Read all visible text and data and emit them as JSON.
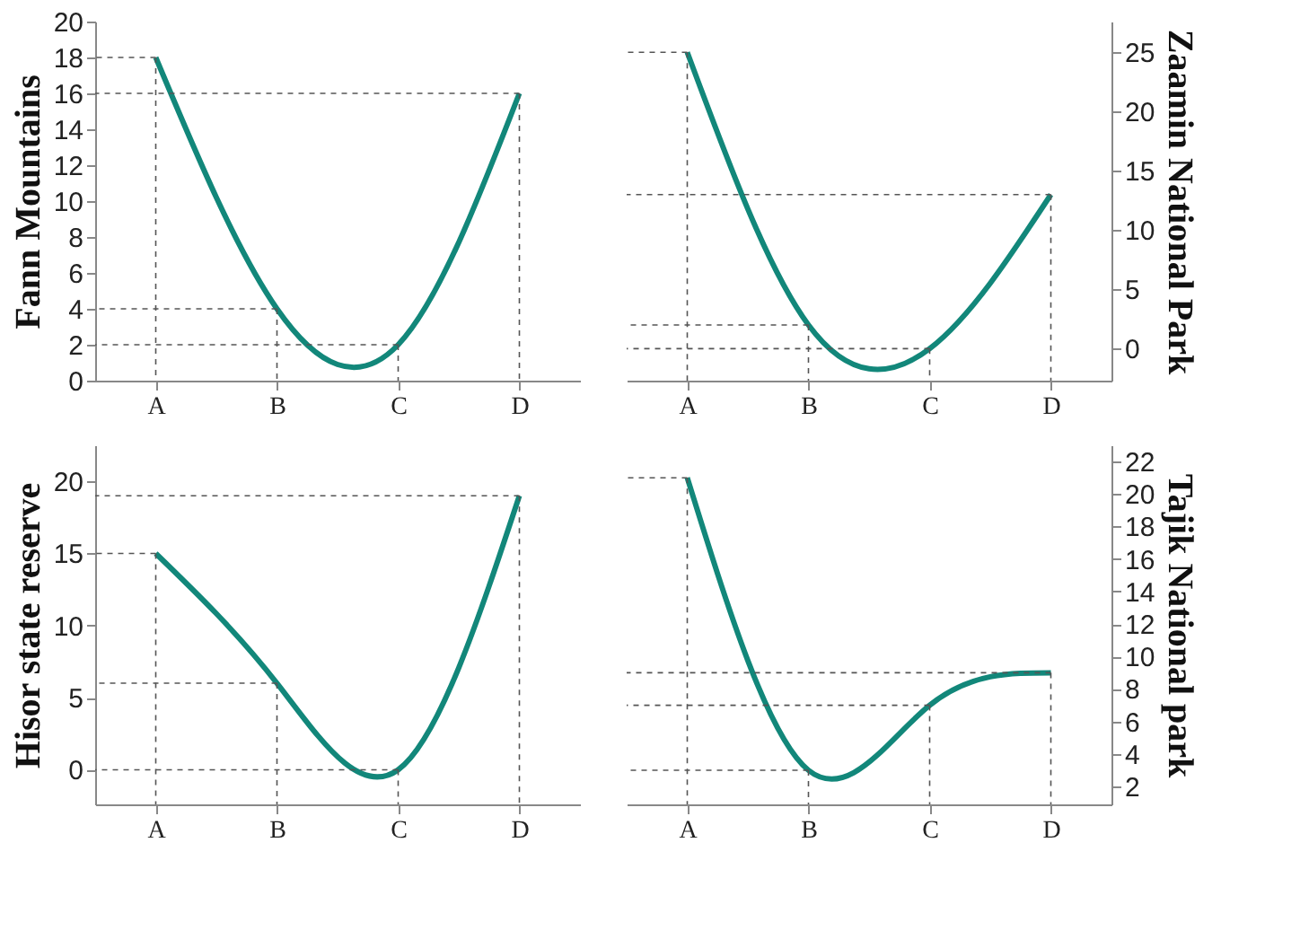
{
  "chart_data": [
    {
      "type": "line",
      "categories": [
        "A",
        "B",
        "C",
        "D"
      ],
      "ylabel": "Fann Mountains",
      "ylim": [
        0,
        20
      ],
      "yticks": [
        0,
        2,
        4,
        6,
        8,
        10,
        12,
        14,
        16,
        18,
        20
      ],
      "grid": false,
      "marker": "none",
      "series": [
        {
          "color": "#12877a",
          "values": [
            18,
            4,
            2,
            16
          ]
        }
      ],
      "ref_lines": [
        {
          "axis": "y",
          "value": 18,
          "color": "#555555",
          "line_style": "dashed"
        },
        {
          "axis": "y",
          "value": 4,
          "color": "#555555",
          "line_style": "dashed"
        },
        {
          "axis": "y",
          "value": 2,
          "color": "#555555",
          "line_style": "dashed"
        },
        {
          "axis": "y",
          "value": 16,
          "color": "#555555",
          "line_style": "dashed"
        },
        {
          "axis": "x",
          "value": "A",
          "color": "#555555",
          "line_style": "dashed"
        },
        {
          "axis": "x",
          "value": "B",
          "color": "#555555",
          "line_style": "dashed"
        },
        {
          "axis": "x",
          "value": "C",
          "color": "#555555",
          "line_style": "dashed"
        },
        {
          "axis": "x",
          "value": "D",
          "color": "#555555",
          "line_style": "dashed"
        }
      ]
    },
    {
      "type": "line",
      "categories": [
        "A",
        "B",
        "C",
        "D"
      ],
      "y2label": "Zaamin National Park",
      "y2lim": [
        -2.7,
        27.6
      ],
      "y2ticks": [
        0,
        5,
        10,
        15,
        20,
        25
      ],
      "grid": false,
      "marker": "none",
      "series": [
        {
          "color": "#12877a",
          "values": [
            25,
            2,
            0,
            13
          ],
          "axis": "y2"
        }
      ],
      "ref_lines": [
        {
          "axis": "y2",
          "value": 25,
          "color": "#555555",
          "line_style": "dashed"
        },
        {
          "axis": "y2",
          "value": 2,
          "color": "#555555",
          "line_style": "dashed"
        },
        {
          "axis": "y2",
          "value": 0,
          "color": "#555555",
          "line_style": "dashed"
        },
        {
          "axis": "y2",
          "value": 13,
          "color": "#555555",
          "line_style": "dashed"
        },
        {
          "axis": "x",
          "value": "A",
          "color": "#555555",
          "line_style": "dashed"
        },
        {
          "axis": "x",
          "value": "B",
          "color": "#555555",
          "line_style": "dashed"
        },
        {
          "axis": "x",
          "value": "C",
          "color": "#555555",
          "line_style": "dashed"
        },
        {
          "axis": "x",
          "value": "D",
          "color": "#555555",
          "line_style": "dashed"
        }
      ]
    },
    {
      "type": "line",
      "categories": [
        "A",
        "B",
        "C",
        "D"
      ],
      "ylabel": "Hisor state reserve",
      "ylim": [
        -2.4,
        22.5
      ],
      "yticks": [
        0,
        5,
        10,
        15,
        20
      ],
      "grid": false,
      "marker": "none",
      "series": [
        {
          "color": "#12877a",
          "values": [
            15,
            6,
            0,
            19
          ]
        }
      ],
      "ref_lines": [
        {
          "axis": "y",
          "value": 15,
          "color": "#555555",
          "line_style": "dashed"
        },
        {
          "axis": "y",
          "value": 6,
          "color": "#555555",
          "line_style": "dashed"
        },
        {
          "axis": "y",
          "value": 0,
          "color": "#555555",
          "line_style": "dashed"
        },
        {
          "axis": "y",
          "value": 19,
          "color": "#555555",
          "line_style": "dashed"
        },
        {
          "axis": "x",
          "value": "A",
          "color": "#555555",
          "line_style": "dashed"
        },
        {
          "axis": "x",
          "value": "B",
          "color": "#555555",
          "line_style": "dashed"
        },
        {
          "axis": "x",
          "value": "C",
          "color": "#555555",
          "line_style": "dashed"
        },
        {
          "axis": "x",
          "value": "D",
          "color": "#555555",
          "line_style": "dashed"
        }
      ]
    },
    {
      "type": "line",
      "categories": [
        "A",
        "B",
        "C",
        "D"
      ],
      "y2label": "Tajik National park",
      "y2lim": [
        0.9,
        23
      ],
      "y2ticks": [
        2,
        4,
        6,
        8,
        10,
        12,
        14,
        16,
        18,
        20,
        22
      ],
      "grid": false,
      "marker": "none",
      "series": [
        {
          "color": "#12877a",
          "values": [
            21,
            3,
            7,
            9
          ],
          "axis": "y2"
        }
      ],
      "ref_lines": [
        {
          "axis": "y2",
          "value": 21,
          "color": "#555555",
          "line_style": "dashed"
        },
        {
          "axis": "y2",
          "value": 3,
          "color": "#555555",
          "line_style": "dashed"
        },
        {
          "axis": "y2",
          "value": 7,
          "color": "#555555",
          "line_style": "dashed"
        },
        {
          "axis": "y2",
          "value": 9,
          "color": "#555555",
          "line_style": "dashed"
        },
        {
          "axis": "x",
          "value": "A",
          "color": "#555555",
          "line_style": "dashed"
        },
        {
          "axis": "x",
          "value": "B",
          "color": "#555555",
          "line_style": "dashed"
        },
        {
          "axis": "x",
          "value": "C",
          "color": "#555555",
          "line_style": "dashed"
        },
        {
          "axis": "x",
          "value": "D",
          "color": "#555555",
          "line_style": "dashed"
        }
      ]
    }
  ]
}
